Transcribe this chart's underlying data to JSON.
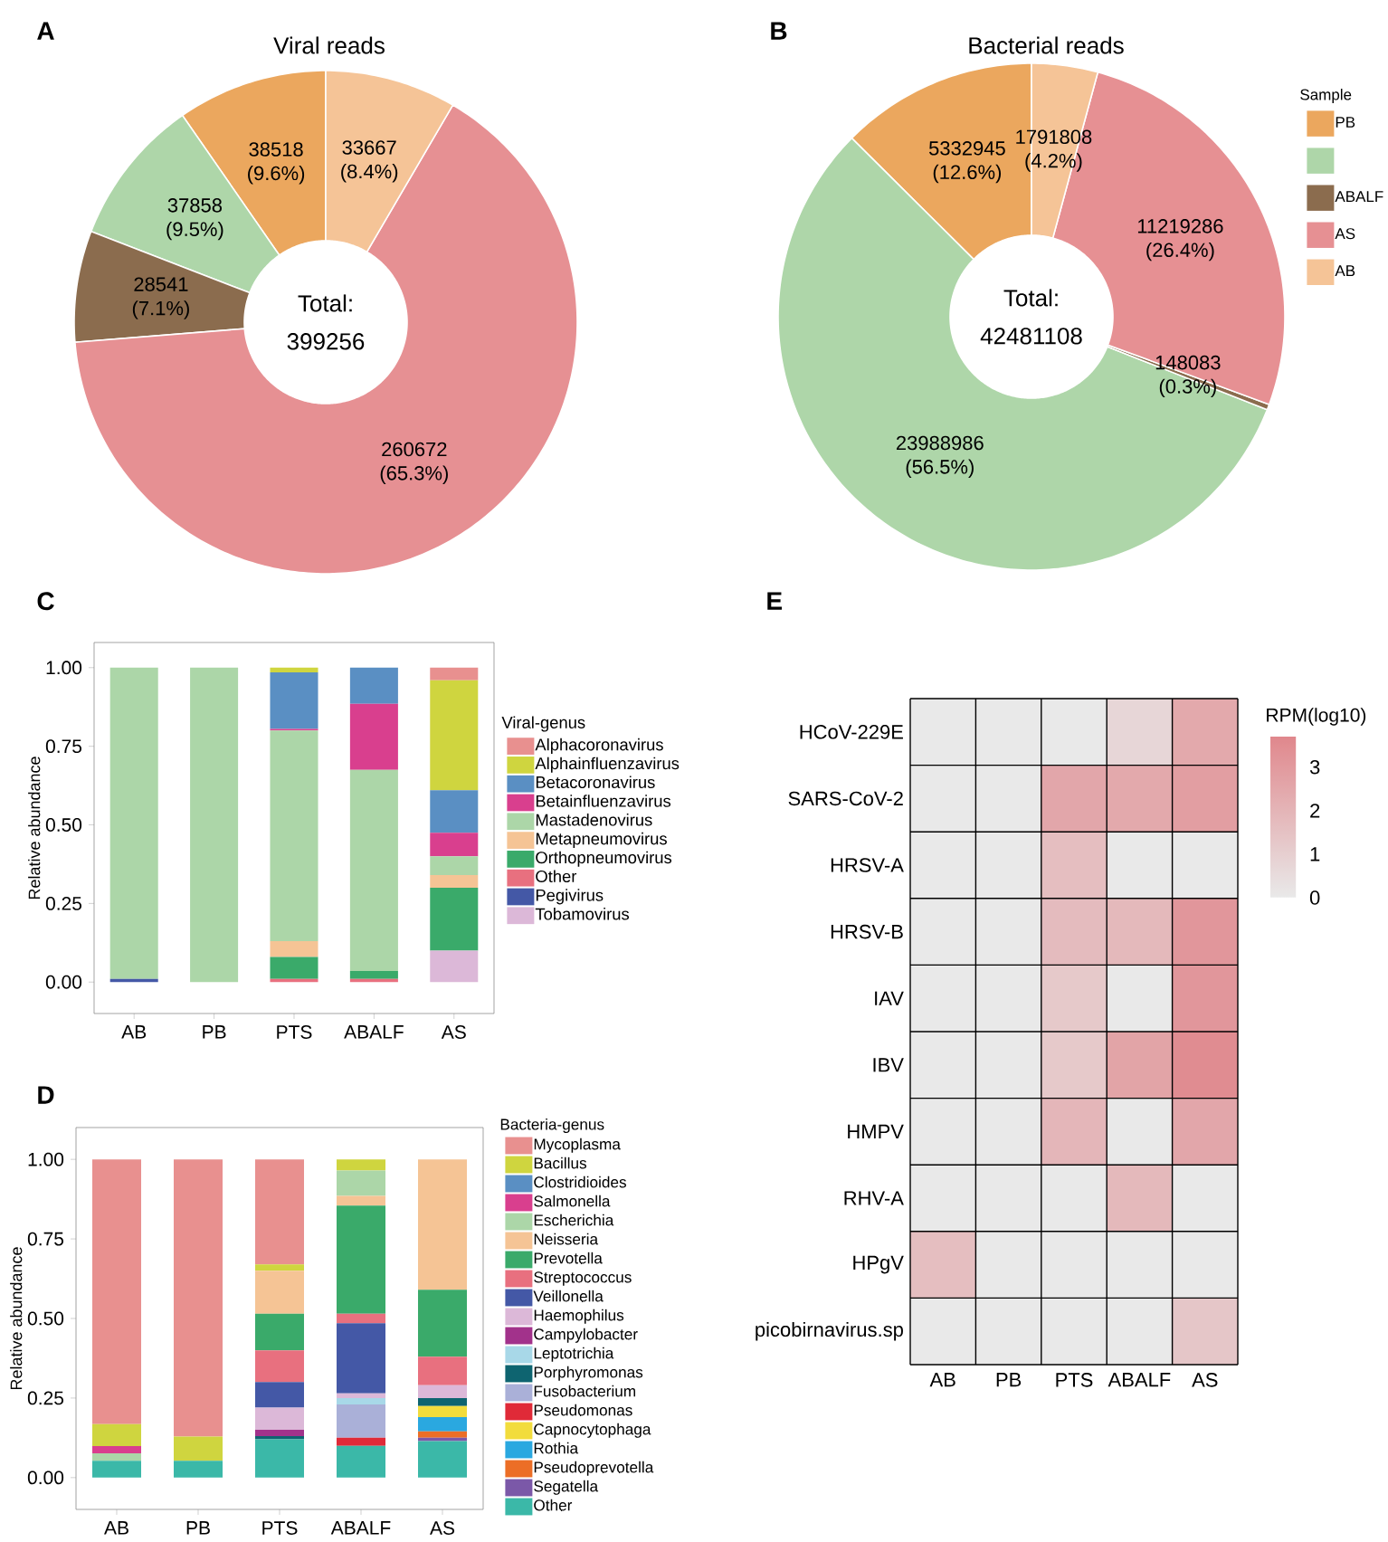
{
  "chart_data": [
    {
      "type": "donut",
      "title": "Viral reads",
      "categories": [
        null,
        null,
        null,
        null,
        null
      ],
      "values": [
        38518,
        37858,
        28541,
        260672,
        33667
      ],
      "colors": [
        "#eba75e",
        "#aed6a9",
        "#8b6c4e",
        "#e69093",
        "#f5c497"
      ],
      "value_labels": [
        "38518 (9.6%)",
        "37858 (9.5%)",
        "28541 (7.1%)",
        "260672 (65.3%)",
        "33667 (8.4%)"
      ],
      "annotations": [
        "A",
        "Total: 399256"
      ]
    },
    {
      "type": "donut",
      "title": "Bacterial reads",
      "categories": [
        "PB",
        null,
        "ABALF",
        "AS",
        "AB"
      ],
      "values": [
        5332945,
        23988986,
        148083,
        11219286,
        1791808
      ],
      "colors": [
        "#eba75e",
        "#aed6a9",
        "#8b6c4e",
        "#e69093",
        "#f5c497"
      ],
      "value_labels": [
        "5332945 (12.6%)",
        "23988986 (56.5%)",
        "148083 (0.3%)",
        "11219286 (26.4%)",
        "1791808 (4.2%)"
      ],
      "annotations": [
        "B",
        "Total: 42481108"
      ],
      "legend": "right",
      "legend_title": "Sample"
    },
    {
      "type": "bar",
      "stacked": true,
      "categories": [
        "AB",
        "PB",
        "PTS",
        "ABALF",
        "AS"
      ],
      "ylabel": "Relative abundance",
      "ylim": [
        -0.1,
        1.08
      ],
      "yticks": [
        {
          "value": 0,
          "label": "0.00"
        },
        {
          "value": 0.25,
          "label": "0.25"
        },
        {
          "value": 0.5,
          "label": "0.50"
        },
        {
          "value": 0.75,
          "label": "0.75"
        },
        {
          "value": 1,
          "label": "1.00"
        }
      ],
      "legend": "right",
      "legend_title": "Viral-genus",
      "annotations": [
        "C"
      ],
      "series": [
        {
          "name": "Tobamovirus",
          "color": "#dcb8d8",
          "values": [
            0,
            0,
            0,
            0,
            0.1
          ]
        },
        {
          "name": "Pegivirus",
          "color": "#4458a6",
          "values": [
            0.01,
            0,
            0,
            0,
            0
          ]
        },
        {
          "name": "Other",
          "color": "#e8707f",
          "values": [
            0,
            0,
            0.01,
            0.01,
            0
          ]
        },
        {
          "name": "Orthopneumovirus",
          "color": "#3aaa6a",
          "values": [
            0,
            0,
            0.07,
            0.025,
            0.2
          ]
        },
        {
          "name": "Metapneumovirus",
          "color": "#f5c495",
          "values": [
            0,
            0,
            0.05,
            0,
            0.04
          ]
        },
        {
          "name": "Mastadenovirus",
          "color": "#acd6a8",
          "values": [
            0.99,
            1.0,
            0.67,
            0.64,
            0.06
          ]
        },
        {
          "name": "Betainfluenzavirus",
          "color": "#d93f8e",
          "values": [
            0,
            0,
            0.005,
            0.21,
            0.075
          ]
        },
        {
          "name": "Betacoronavirus",
          "color": "#5a8fc3",
          "values": [
            0,
            0,
            0.18,
            0.115,
            0.135
          ]
        },
        {
          "name": "Alphainfluenzavirus",
          "color": "#cfd53f",
          "values": [
            0,
            0,
            0.015,
            0,
            0.35
          ]
        },
        {
          "name": "Alphacoronavirus",
          "color": "#e8908f",
          "values": [
            0,
            0,
            0,
            0,
            0.04
          ]
        }
      ]
    },
    {
      "type": "bar",
      "stacked": true,
      "categories": [
        "AB",
        "PB",
        "PTS",
        "ABALF",
        "AS"
      ],
      "ylabel": "Relative abundance",
      "ylim": [
        -0.1,
        1.1
      ],
      "yticks": [
        {
          "value": 0,
          "label": "0.00"
        },
        {
          "value": 0.25,
          "label": "0.25"
        },
        {
          "value": 0.5,
          "label": "0.50"
        },
        {
          "value": 0.75,
          "label": "0.75"
        },
        {
          "value": 1,
          "label": "1.00"
        }
      ],
      "legend": "right",
      "legend_title": "Bacteria-genus",
      "annotations": [
        "D"
      ],
      "series": [
        {
          "name": "Other",
          "color": "#3bb8a8",
          "values": [
            0.053,
            0.053,
            0.12,
            0.1,
            0.115
          ]
        },
        {
          "name": "Segatella",
          "color": "#7b58a8",
          "values": [
            0,
            0,
            0,
            0,
            0.01
          ]
        },
        {
          "name": "Pseudoprevotella",
          "color": "#ec6e26",
          "values": [
            0,
            0,
            0,
            0,
            0.02
          ]
        },
        {
          "name": "Rothia",
          "color": "#2aa8e0",
          "values": [
            0,
            0,
            0,
            0,
            0.045
          ]
        },
        {
          "name": "Capnocytophaga",
          "color": "#f2dc3c",
          "values": [
            0,
            0,
            0,
            0,
            0.035
          ]
        },
        {
          "name": "Pseudomonas",
          "color": "#e02a38",
          "values": [
            0,
            0,
            0,
            0.025,
            0
          ]
        },
        {
          "name": "Fusobacterium",
          "color": "#aab0d8",
          "values": [
            0,
            0,
            0,
            0.105,
            0
          ]
        },
        {
          "name": "Porphyromonas",
          "color": "#0e6470",
          "values": [
            0,
            0,
            0.01,
            0,
            0.025
          ]
        },
        {
          "name": "Leptotrichia",
          "color": "#a8d8e8",
          "values": [
            0,
            0,
            0,
            0.02,
            0
          ]
        },
        {
          "name": "Campylobacter",
          "color": "#a2328b",
          "values": [
            0,
            0,
            0.02,
            0,
            0
          ]
        },
        {
          "name": "Haemophilus",
          "color": "#dcb8d8",
          "values": [
            0,
            0,
            0.07,
            0.015,
            0.04
          ]
        },
        {
          "name": "Veillonella",
          "color": "#4458a6",
          "values": [
            0,
            0,
            0.08,
            0.22,
            0
          ]
        },
        {
          "name": "Streptococcus",
          "color": "#e8707f",
          "values": [
            0,
            0,
            0.1,
            0.03,
            0.09
          ]
        },
        {
          "name": "Prevotella",
          "color": "#3aaa6a",
          "values": [
            0,
            0,
            0.115,
            0.34,
            0.21
          ]
        },
        {
          "name": "Neisseria",
          "color": "#f5c495",
          "values": [
            0,
            0,
            0.135,
            0.03,
            0.41
          ]
        },
        {
          "name": "Escherichia",
          "color": "#acd6a8",
          "values": [
            0.023,
            0,
            0,
            0.08,
            0
          ]
        },
        {
          "name": "Salmonella",
          "color": "#d93f8e",
          "values": [
            0.023,
            0,
            0,
            0,
            0
          ]
        },
        {
          "name": "Clostridioides",
          "color": "#5a8fc3",
          "values": [
            0,
            0,
            0,
            0,
            0
          ]
        },
        {
          "name": "Bacillus",
          "color": "#cfd53f",
          "values": [
            0.069,
            0.076,
            0.02,
            0.035,
            0
          ]
        },
        {
          "name": "Mycoplasma",
          "color": "#e8908f",
          "values": [
            0.832,
            0.871,
            0.33,
            0,
            0
          ]
        }
      ]
    },
    {
      "type": "heatmap",
      "categories": [
        "AB",
        "PB",
        "PTS",
        "ABALF",
        "AS"
      ],
      "y_categories": [
        "HCoV-229E",
        "SARS-CoV-2",
        "HRSV-A",
        "HRSV-B",
        "IAV",
        "IBV",
        "HMPV",
        "RHV-A",
        "HPgV",
        "picobirnavirus.sp"
      ],
      "clabel": "RPM(log10)",
      "clim": [
        0,
        3.7
      ],
      "cticks": [
        0,
        1,
        2,
        3
      ],
      "annotations": [
        "E"
      ],
      "cells": [
        [
          0,
          0,
          0,
          0.7,
          2.4
        ],
        [
          0,
          0,
          2.5,
          2.4,
          2.8
        ],
        [
          0,
          0,
          1.6,
          0,
          0
        ],
        [
          0,
          0,
          1.7,
          1.8,
          3.1
        ],
        [
          0,
          0,
          1.2,
          0,
          3.1
        ],
        [
          0,
          0,
          1.2,
          2.6,
          3.5
        ],
        [
          0,
          0,
          1.9,
          0,
          2.5
        ],
        [
          0,
          0,
          0,
          1.8,
          0
        ],
        [
          1.6,
          0,
          0,
          0,
          0
        ],
        [
          0,
          0,
          0,
          0,
          1.3
        ]
      ]
    }
  ]
}
